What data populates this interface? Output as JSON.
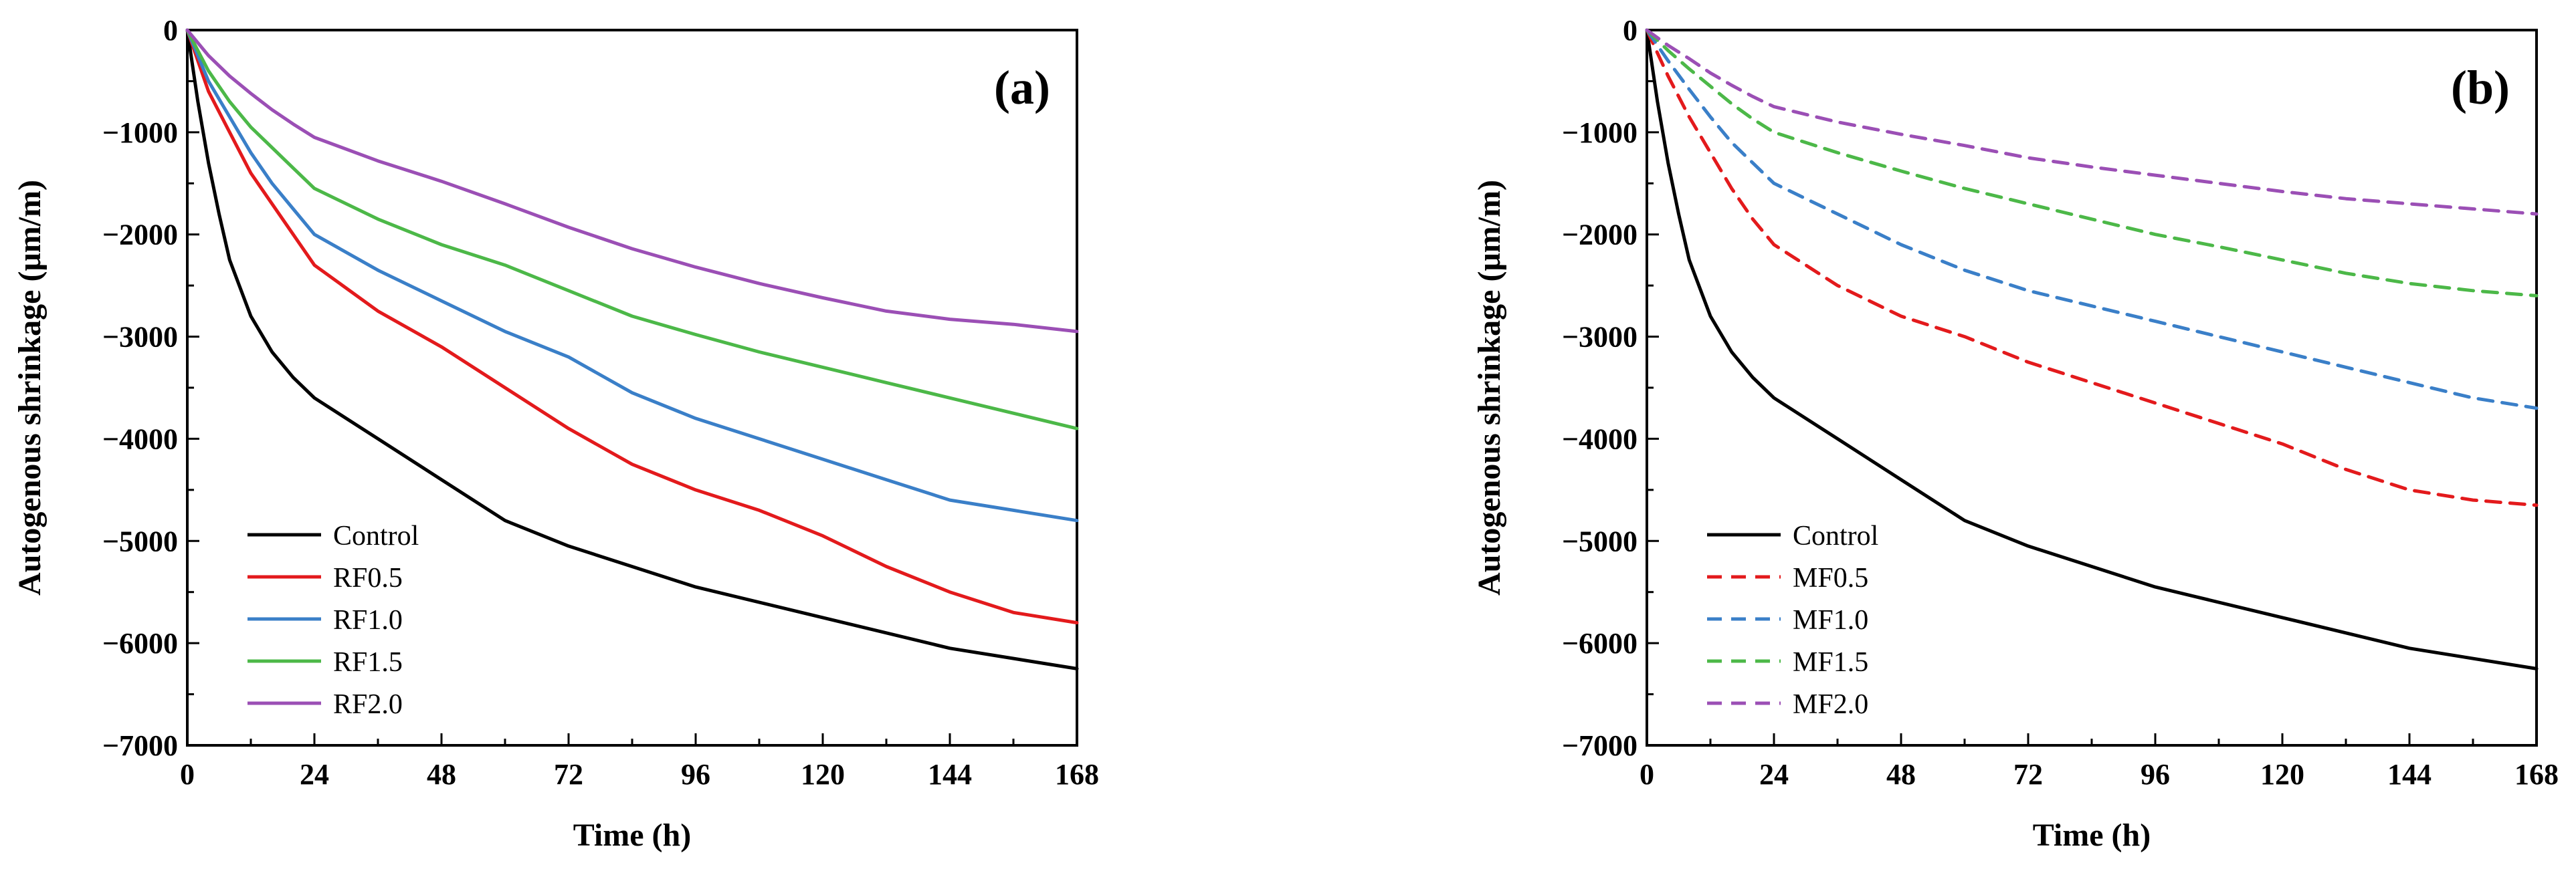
{
  "chart_data": [
    {
      "type": "line",
      "panel_label": "(a)",
      "xlabel": "Time (h)",
      "ylabel": "Autogenous shrinkage (μm/m)",
      "xlim": [
        0,
        168
      ],
      "ylim": [
        -7000,
        0
      ],
      "xticks": [
        0,
        24,
        48,
        72,
        96,
        120,
        144,
        168
      ],
      "yticks": [
        0,
        -1000,
        -2000,
        -3000,
        -4000,
        -5000,
        -6000,
        -7000
      ],
      "legend_position": "bottom-left",
      "series": [
        {
          "name": "Control",
          "color": "#000000",
          "dashed": false,
          "x": [
            0,
            2,
            4,
            6,
            8,
            12,
            16,
            20,
            24,
            36,
            48,
            60,
            72,
            96,
            120,
            144,
            168
          ],
          "y": [
            0,
            -700,
            -1300,
            -1800,
            -2250,
            -2800,
            -3150,
            -3400,
            -3600,
            -4000,
            -4400,
            -4800,
            -5050,
            -5450,
            -5750,
            -6050,
            -6250
          ]
        },
        {
          "name": "RF0.5",
          "color": "#e31a1c",
          "dashed": false,
          "x": [
            0,
            2,
            4,
            8,
            12,
            16,
            20,
            24,
            36,
            48,
            60,
            72,
            84,
            96,
            108,
            120,
            132,
            144,
            156,
            168
          ],
          "y": [
            0,
            -300,
            -600,
            -1000,
            -1400,
            -1700,
            -2000,
            -2300,
            -2750,
            -3100,
            -3500,
            -3900,
            -4250,
            -4500,
            -4700,
            -4950,
            -5250,
            -5500,
            -5700,
            -5800
          ]
        },
        {
          "name": "RF1.0",
          "color": "#3a7fc8",
          "dashed": false,
          "x": [
            0,
            2,
            4,
            8,
            12,
            16,
            20,
            24,
            36,
            48,
            60,
            72,
            84,
            96,
            108,
            120,
            132,
            144,
            156,
            168
          ],
          "y": [
            0,
            -250,
            -500,
            -850,
            -1200,
            -1500,
            -1750,
            -2000,
            -2350,
            -2650,
            -2950,
            -3200,
            -3550,
            -3800,
            -4000,
            -4200,
            -4400,
            -4600,
            -4700,
            -4800
          ]
        },
        {
          "name": "RF1.5",
          "color": "#4cb848",
          "dashed": false,
          "x": [
            0,
            2,
            4,
            8,
            12,
            16,
            20,
            24,
            36,
            48,
            60,
            72,
            84,
            96,
            108,
            120,
            132,
            144,
            156,
            168
          ],
          "y": [
            0,
            -200,
            -400,
            -700,
            -950,
            -1150,
            -1350,
            -1550,
            -1850,
            -2100,
            -2300,
            -2550,
            -2800,
            -2980,
            -3150,
            -3300,
            -3450,
            -3600,
            -3750,
            -3900
          ]
        },
        {
          "name": "RF2.0",
          "color": "#9b4fb5",
          "dashed": false,
          "x": [
            0,
            4,
            8,
            12,
            16,
            20,
            24,
            36,
            48,
            60,
            72,
            84,
            96,
            108,
            120,
            132,
            144,
            156,
            168
          ],
          "y": [
            0,
            -250,
            -450,
            -620,
            -780,
            -920,
            -1050,
            -1280,
            -1480,
            -1700,
            -1930,
            -2140,
            -2320,
            -2480,
            -2620,
            -2750,
            -2830,
            -2880,
            -2950
          ]
        }
      ]
    },
    {
      "type": "line",
      "panel_label": "(b)",
      "xlabel": "Time (h)",
      "ylabel": "Autogenous shrinkage (μm/m)",
      "xlim": [
        0,
        168
      ],
      "ylim": [
        -7000,
        0
      ],
      "xticks": [
        0,
        24,
        48,
        72,
        96,
        120,
        144,
        168
      ],
      "yticks": [
        0,
        -1000,
        -2000,
        -3000,
        -4000,
        -5000,
        -6000,
        -7000
      ],
      "legend_position": "bottom-left",
      "series": [
        {
          "name": "Control",
          "color": "#000000",
          "dashed": false,
          "x": [
            0,
            2,
            4,
            6,
            8,
            12,
            16,
            20,
            24,
            36,
            48,
            60,
            72,
            96,
            120,
            144,
            168
          ],
          "y": [
            0,
            -700,
            -1300,
            -1800,
            -2250,
            -2800,
            -3150,
            -3400,
            -3600,
            -4000,
            -4400,
            -4800,
            -5050,
            -5450,
            -5750,
            -6050,
            -6250
          ]
        },
        {
          "name": "MF0.5",
          "color": "#e31a1c",
          "dashed": true,
          "x": [
            0,
            4,
            8,
            12,
            16,
            20,
            24,
            36,
            48,
            60,
            72,
            84,
            96,
            108,
            120,
            132,
            144,
            156,
            168
          ],
          "y": [
            0,
            -450,
            -850,
            -1200,
            -1550,
            -1850,
            -2100,
            -2500,
            -2800,
            -3000,
            -3250,
            -3450,
            -3650,
            -3850,
            -4050,
            -4300,
            -4500,
            -4600,
            -4650
          ]
        },
        {
          "name": "MF1.0",
          "color": "#3a7fc8",
          "dashed": true,
          "x": [
            0,
            4,
            8,
            12,
            16,
            20,
            24,
            36,
            48,
            60,
            72,
            84,
            96,
            108,
            120,
            132,
            144,
            156,
            168
          ],
          "y": [
            0,
            -300,
            -580,
            -850,
            -1100,
            -1300,
            -1500,
            -1800,
            -2100,
            -2350,
            -2550,
            -2700,
            -2850,
            -3000,
            -3150,
            -3300,
            -3450,
            -3600,
            -3700
          ]
        },
        {
          "name": "MF1.5",
          "color": "#4cb848",
          "dashed": true,
          "x": [
            0,
            4,
            8,
            12,
            16,
            20,
            24,
            36,
            48,
            60,
            72,
            84,
            96,
            108,
            120,
            132,
            144,
            156,
            168
          ],
          "y": [
            0,
            -200,
            -380,
            -550,
            -720,
            -870,
            -1000,
            -1200,
            -1380,
            -1550,
            -1700,
            -1850,
            -2000,
            -2120,
            -2250,
            -2380,
            -2480,
            -2550,
            -2600
          ]
        },
        {
          "name": "MF2.0",
          "color": "#9b4fb5",
          "dashed": true,
          "x": [
            0,
            4,
            8,
            12,
            16,
            20,
            24,
            36,
            48,
            60,
            72,
            84,
            96,
            108,
            120,
            132,
            144,
            156,
            168
          ],
          "y": [
            0,
            -150,
            -280,
            -420,
            -540,
            -650,
            -750,
            -900,
            -1020,
            -1130,
            -1250,
            -1340,
            -1420,
            -1500,
            -1580,
            -1650,
            -1700,
            -1750,
            -1800
          ]
        }
      ]
    }
  ]
}
